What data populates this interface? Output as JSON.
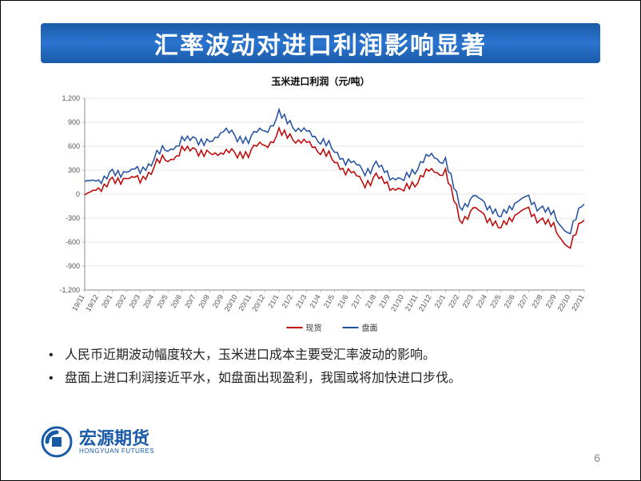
{
  "title": "汇率波动对进口利润影响显著",
  "chart": {
    "title": "玉米进口利润（元/吨）",
    "type": "line",
    "ylim": [
      -1200,
      1200
    ],
    "ytick_step": 300,
    "yticks": [
      -1200,
      -900,
      -600,
      -300,
      0,
      300,
      600,
      900,
      1200
    ],
    "xlabels": [
      "19/11",
      "19/12",
      "20/1",
      "20/2",
      "20/3",
      "20/4",
      "20/5",
      "20/6",
      "20/7",
      "20/8",
      "20/9",
      "20/10",
      "20/11",
      "20/12",
      "21/1",
      "21/2",
      "21/3",
      "21/4",
      "21/5",
      "21/6",
      "21/7",
      "21/8",
      "21/9",
      "21/10",
      "21/11",
      "21/12",
      "22/1",
      "22/2",
      "22/3",
      "22/4",
      "22/5",
      "22/6",
      "22/7",
      "22/8",
      "22/9",
      "22/10",
      "22/11"
    ],
    "series": [
      {
        "name": "现货",
        "color": "#c00000",
        "data": [
          -50,
          80,
          150,
          200,
          180,
          350,
          450,
          530,
          560,
          480,
          540,
          500,
          550,
          620,
          750,
          700,
          640,
          550,
          420,
          280,
          150,
          200,
          100,
          50,
          180,
          310,
          260,
          -320,
          -200,
          -280,
          -420,
          -250,
          -200,
          -350,
          -450,
          -680,
          -250
        ]
      },
      {
        "name": "盘面",
        "color": "#1f4ea1",
        "data": [
          120,
          180,
          250,
          280,
          300,
          450,
          580,
          650,
          700,
          620,
          820,
          700,
          720,
          800,
          980,
          850,
          780,
          680,
          550,
          400,
          300,
          350,
          230,
          180,
          350,
          500,
          400,
          -150,
          -50,
          -120,
          -280,
          -100,
          -50,
          -200,
          -300,
          -500,
          -50
        ]
      }
    ],
    "axis_color": "#888888",
    "grid_color": "#cccccc",
    "label_fontsize": 9,
    "legend_fontsize": 10,
    "line_width": 1.5
  },
  "bullets": [
    "人民币近期波动幅度较大，玉米进口成本主要受汇率波动的影响。",
    "盘面上进口利润接近平水，如盘面出现盈利，我国或将加快进口步伐。"
  ],
  "logo": {
    "name_cn": "宏源期货",
    "name_en": "HONGYUAN FUTURES",
    "color": "#1a5ba8"
  },
  "page_number": "6"
}
